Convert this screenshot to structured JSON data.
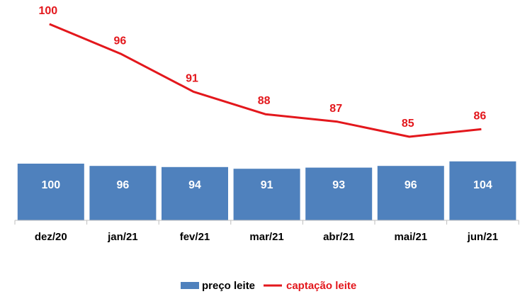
{
  "chart_data": {
    "type": "bar",
    "categories": [
      "dez/20",
      "jan/21",
      "fev/21",
      "mar/21",
      "abr/21",
      "mai/21",
      "jun/21"
    ],
    "series": [
      {
        "name": "preço leite",
        "type": "bar",
        "values": [
          100,
          96,
          94,
          91,
          93,
          96,
          104
        ],
        "color": "#4f81bd"
      },
      {
        "name": "captação leite",
        "type": "line",
        "values": [
          100,
          96,
          91,
          88,
          87,
          85,
          86
        ],
        "color": "#e3171c"
      }
    ],
    "title": "",
    "xlabel": "",
    "ylabel": "",
    "grid": false,
    "legend": "bottom"
  }
}
